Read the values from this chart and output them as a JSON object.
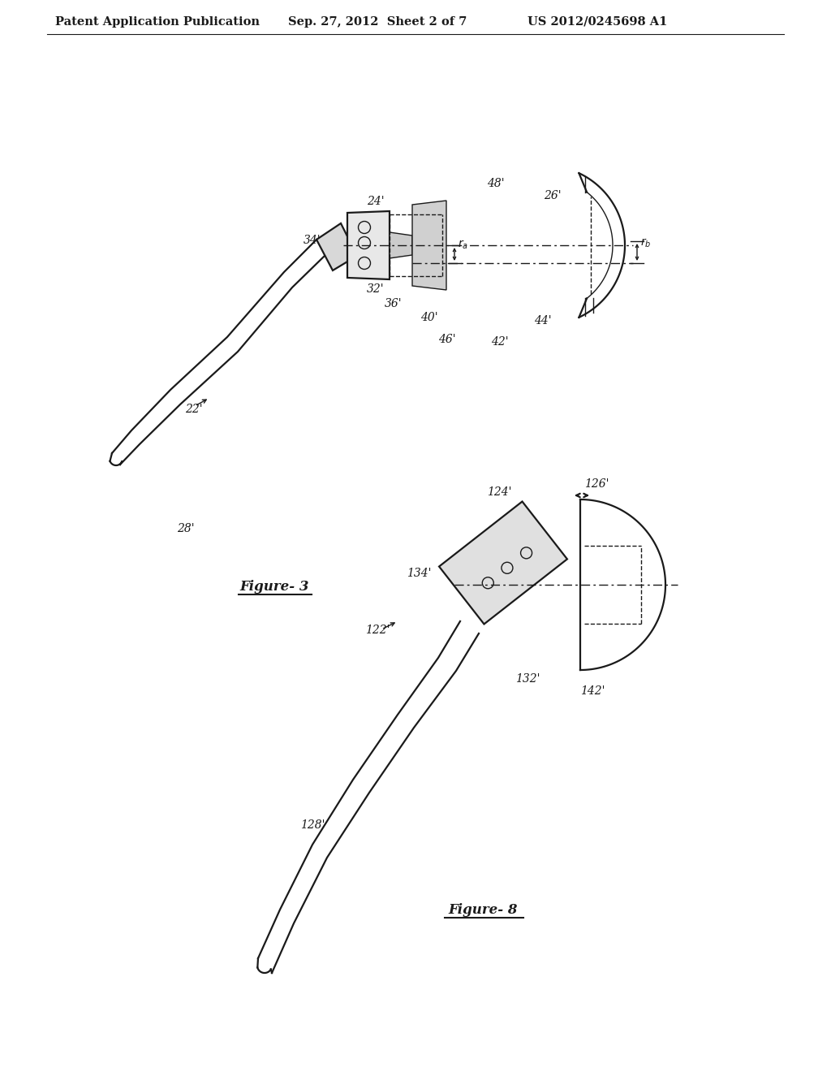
{
  "bg_color": "#ffffff",
  "header_text": "Patent Application Publication",
  "header_date": "Sep. 27, 2012  Sheet 2 of 7",
  "header_patent": "US 2012/0245698 A1",
  "fig3_label": "Figure- 3",
  "fig8_label": "Figure- 8",
  "line_color": "#1a1a1a",
  "label_color": "#1a1a1a",
  "lw_main": 1.6,
  "lw_thin": 1.0,
  "fs_label": 10,
  "fs_header": 10.5,
  "fs_fig_title": 12
}
